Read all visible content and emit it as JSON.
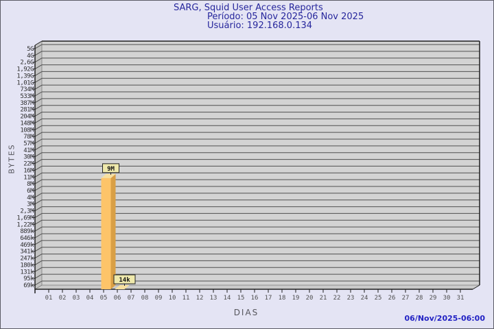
{
  "header": {
    "title": "SARG, Squid User Access Reports",
    "period": "Período: 05 Nov 2025-06 Nov 2025",
    "user": "Usuário: 192.168.0.134"
  },
  "footer": {
    "timestamp": "06/Nov/2025-06:00"
  },
  "chart_data": {
    "type": "bar",
    "title": "SARG, Squid User Access Reports",
    "subtitle": "Período: 05 Nov 2025-06 Nov 2025",
    "user": "Usuário: 192.168.0.134",
    "xlabel": "DIAS",
    "ylabel": "BYTES",
    "y_scale": "log",
    "grid": true,
    "legend_position": "none",
    "style_3d": true,
    "x_categories": [
      "01",
      "02",
      "03",
      "04",
      "05",
      "06",
      "07",
      "08",
      "09",
      "10",
      "11",
      "12",
      "13",
      "14",
      "15",
      "16",
      "17",
      "18",
      "19",
      "20",
      "21",
      "22",
      "23",
      "24",
      "25",
      "26",
      "27",
      "28",
      "29",
      "30",
      "31"
    ],
    "y_tick_labels": [
      "5G",
      "4G",
      "2,6G",
      "1,92G",
      "1,39G",
      "1,01G",
      "734M",
      "533M",
      "387M",
      "281M",
      "204M",
      "148M",
      "108M",
      "78M",
      "57M",
      "41M",
      "30M",
      "22M",
      "16M",
      "11M",
      "8M",
      "6M",
      "4M",
      "3M",
      "2,3M",
      "1,69M",
      "1,22M",
      "889k",
      "646k",
      "469k",
      "341k",
      "247k",
      "180k",
      "131k",
      "95k",
      "69k"
    ],
    "y_min_value": 69000,
    "y_max_value": 5000000000,
    "bars": [
      {
        "day": "05",
        "value": 9000000,
        "label": "9M"
      },
      {
        "day": "06",
        "value": 14000,
        "label": "14k"
      }
    ],
    "colors": {
      "page_bg": "#E4E4F4",
      "plot_bg": "#D3D3D3",
      "wall": "#C2C2C2",
      "floor": "#CACACA",
      "grid": "#4F4F4F",
      "frame": "#1E1E1E",
      "bar_front": "#FDC469",
      "bar_side": "#D99F45",
      "bar_top": "#F7E0A0",
      "label_box_bg": "#EFE9AC",
      "label_box_border": "#222222",
      "title_text": "#26269C",
      "footer_text": "#2222C4"
    }
  }
}
